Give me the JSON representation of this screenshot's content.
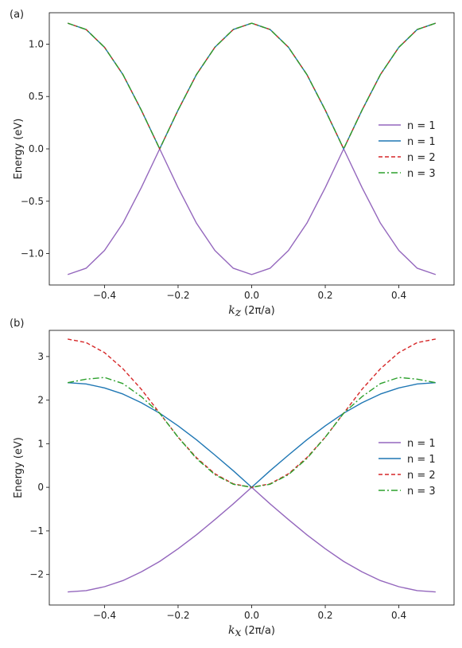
{
  "chart_data": [
    {
      "panel_label": "(a)",
      "type": "line",
      "xlabel_var": "k",
      "xlabel_sub": "z",
      "xlabel_units": "(2π/a)",
      "ylabel": "Energy (eV)",
      "xlim": [
        -0.55,
        0.55
      ],
      "ylim": [
        -1.3,
        1.3
      ],
      "xticks": [
        -0.4,
        -0.2,
        0.0,
        0.2,
        0.4
      ],
      "xtick_labels": [
        "−0.4",
        "−0.2",
        "0.0",
        "0.2",
        "0.4"
      ],
      "yticks": [
        -1.0,
        -0.5,
        0.0,
        0.5,
        1.0
      ],
      "ytick_labels": [
        "−1.0",
        "−0.5",
        "0.0",
        "0.5",
        "1.0"
      ],
      "legend_position": "center-right",
      "x": [
        -0.5,
        -0.45,
        -0.4,
        -0.35,
        -0.3,
        -0.25,
        -0.2,
        -0.15,
        -0.1,
        -0.05,
        0.0,
        0.05,
        0.1,
        0.15,
        0.2,
        0.25,
        0.3,
        0.35,
        0.4,
        0.45,
        0.5
      ],
      "series": [
        {
          "name": "n = 1",
          "color": "#9467bd",
          "dash": "solid",
          "values": [
            -1.2,
            -1.14,
            -0.97,
            -0.71,
            -0.37,
            0.0,
            -0.37,
            -0.71,
            -0.97,
            -1.14,
            -1.2,
            -1.14,
            -0.97,
            -0.71,
            -0.37,
            0.0,
            -0.37,
            -0.71,
            -0.97,
            -1.14,
            -1.2
          ]
        },
        {
          "name": "n = 1",
          "color": "#1f77b4",
          "dash": "solid",
          "values": [
            1.2,
            1.14,
            0.97,
            0.71,
            0.37,
            0.0,
            0.37,
            0.71,
            0.97,
            1.14,
            1.2,
            1.14,
            0.97,
            0.71,
            0.37,
            0.0,
            0.37,
            0.71,
            0.97,
            1.14,
            1.2
          ]
        },
        {
          "name": "n = 2",
          "color": "#d62728",
          "dash": "dashed",
          "values": [
            1.2,
            1.14,
            0.97,
            0.71,
            0.37,
            0.0,
            0.37,
            0.71,
            0.97,
            1.14,
            1.2,
            1.14,
            0.97,
            0.71,
            0.37,
            0.0,
            0.37,
            0.71,
            0.97,
            1.14,
            1.2
          ]
        },
        {
          "name": "n = 3",
          "color": "#2ca02c",
          "dash": "dashdot",
          "values": [
            1.2,
            1.14,
            0.97,
            0.71,
            0.37,
            0.0,
            0.37,
            0.71,
            0.97,
            1.14,
            1.2,
            1.14,
            0.97,
            0.71,
            0.37,
            0.0,
            0.37,
            0.71,
            0.97,
            1.14,
            1.2
          ]
        }
      ]
    },
    {
      "panel_label": "(b)",
      "type": "line",
      "xlabel_var": "k",
      "xlabel_sub": "x",
      "xlabel_units": "(2π/a)",
      "ylabel": "Energy (eV)",
      "xlim": [
        -0.55,
        0.55
      ],
      "ylim": [
        -2.7,
        3.6
      ],
      "xticks": [
        -0.4,
        -0.2,
        0.0,
        0.2,
        0.4
      ],
      "xtick_labels": [
        "−0.4",
        "−0.2",
        "0.0",
        "0.2",
        "0.4"
      ],
      "yticks": [
        -2,
        -1,
        0,
        1,
        2,
        3
      ],
      "ytick_labels": [
        "−2",
        "−1",
        "0",
        "1",
        "2",
        "3"
      ],
      "legend_position": "center-right",
      "x": [
        -0.5,
        -0.45,
        -0.4,
        -0.35,
        -0.3,
        -0.25,
        -0.2,
        -0.15,
        -0.1,
        -0.05,
        0.0,
        0.05,
        0.1,
        0.15,
        0.2,
        0.25,
        0.3,
        0.35,
        0.4,
        0.45,
        0.5
      ],
      "series": [
        {
          "name": "n = 1",
          "color": "#9467bd",
          "dash": "solid",
          "values": [
            -2.4,
            -2.37,
            -2.28,
            -2.14,
            -1.94,
            -1.7,
            -1.41,
            -1.09,
            -0.74,
            -0.38,
            0.0,
            -0.38,
            -0.74,
            -1.09,
            -1.41,
            -1.7,
            -1.94,
            -2.14,
            -2.28,
            -2.37,
            -2.4
          ]
        },
        {
          "name": "n = 1",
          "color": "#1f77b4",
          "dash": "solid",
          "values": [
            2.4,
            2.37,
            2.28,
            2.14,
            1.94,
            1.7,
            1.41,
            1.09,
            0.74,
            0.38,
            0.0,
            0.38,
            0.74,
            1.09,
            1.41,
            1.7,
            1.94,
            2.14,
            2.28,
            2.37,
            2.4
          ]
        },
        {
          "name": "n = 2",
          "color": "#d62728",
          "dash": "dashed",
          "values": [
            3.4,
            3.32,
            3.09,
            2.72,
            2.25,
            1.7,
            1.15,
            0.68,
            0.31,
            0.08,
            0.0,
            0.08,
            0.31,
            0.68,
            1.15,
            1.7,
            2.25,
            2.72,
            3.09,
            3.32,
            3.4
          ]
        },
        {
          "name": "n = 3",
          "color": "#2ca02c",
          "dash": "dashdot",
          "values": [
            2.4,
            2.48,
            2.52,
            2.38,
            2.08,
            1.7,
            1.15,
            0.66,
            0.29,
            0.07,
            0.0,
            0.07,
            0.29,
            0.66,
            1.15,
            1.7,
            2.08,
            2.38,
            2.52,
            2.48,
            2.4
          ]
        }
      ]
    }
  ]
}
